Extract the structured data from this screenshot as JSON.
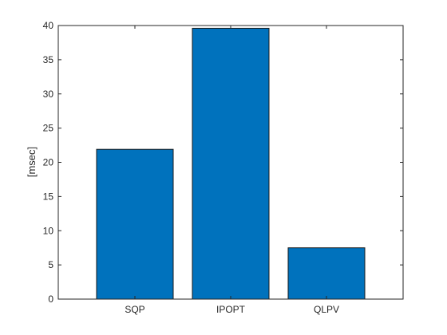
{
  "chart_data": {
    "type": "bar",
    "title": "",
    "xlabel": "",
    "ylabel": "[msec]",
    "categories": [
      "SQP",
      "IPOPT",
      "QLPV"
    ],
    "values": [
      21.9,
      39.6,
      7.5
    ],
    "ylim": [
      0,
      40
    ],
    "yticks": [
      0,
      5,
      10,
      15,
      20,
      25,
      30,
      35,
      40
    ],
    "grid": false,
    "legend": "none",
    "colors": {
      "bar_fill": "#0072BD",
      "bar_edge": "#1a1a1a",
      "axis": "#262626",
      "background": "#ffffff"
    }
  }
}
